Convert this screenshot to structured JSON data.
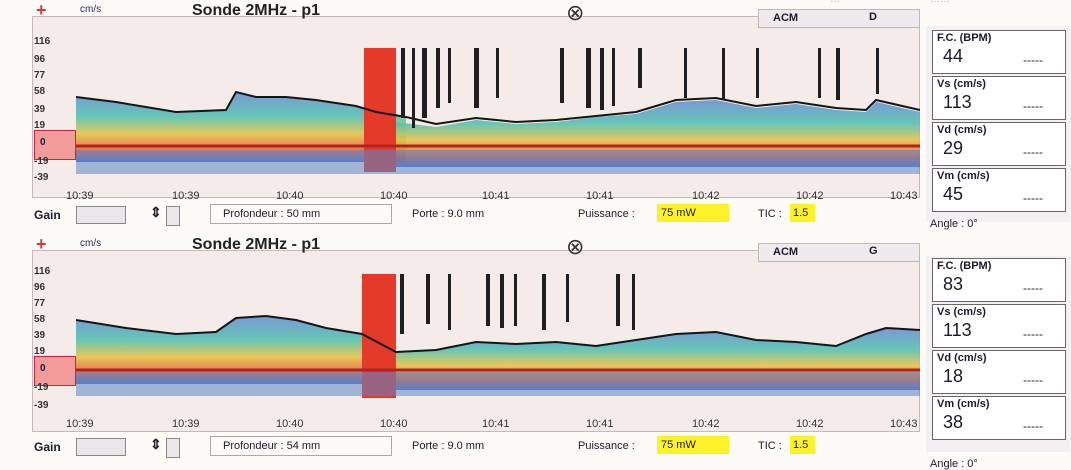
{
  "top_right_fragments": [
    "…",
    "……"
  ],
  "panels": [
    {
      "unit": "cm/s",
      "title": "Sonde 2MHz - p1",
      "acm": "ACM",
      "side": "D",
      "y_labels": [
        "116",
        "96",
        "77",
        "58",
        "39",
        "19",
        "0",
        "-19",
        "-39"
      ],
      "x_ticks": [
        "10:39",
        "10:39",
        "10:40",
        "10:40",
        "10:41",
        "10:41",
        "10:42",
        "10:42",
        "10:43"
      ],
      "gain_label": "Gain",
      "profondeur": "Profondeur :  50 mm",
      "porte": "Porte : 9.0 mm",
      "puissance_label": "Puissance :",
      "puissance_value": "75 mW",
      "tic_label": "TIC :",
      "tic_value": "1.5",
      "metrics": [
        {
          "label": "F.C. (BPM)",
          "value": "44",
          "dash": "-----"
        },
        {
          "label": "Vs (cm/s)",
          "value": "113",
          "dash": "-----"
        },
        {
          "label": "Vd (cm/s)",
          "value": "29",
          "dash": "-----"
        },
        {
          "label": "Vm (cm/s)",
          "value": "45",
          "dash": "-----"
        }
      ],
      "angle": "Angle :  0°"
    },
    {
      "unit": "cm/s",
      "title": "Sonde 2MHz - p1",
      "acm": "ACM",
      "side": "G",
      "y_labels": [
        "116",
        "96",
        "77",
        "58",
        "39",
        "19",
        "0",
        "-19",
        "-39"
      ],
      "x_ticks": [
        "10:39",
        "10:39",
        "10:40",
        "10:40",
        "10:41",
        "10:41",
        "10:42",
        "10:42",
        "10:43"
      ],
      "gain_label": "Gain",
      "profondeur": "Profondeur :  54 mm",
      "porte": "Porte : 9.0 mm",
      "puissance_label": "Puissance :",
      "puissance_value": "75 mW",
      "tic_label": "TIC :",
      "tic_value": "1.5",
      "metrics": [
        {
          "label": "F.C. (BPM)",
          "value": "83",
          "dash": "-----"
        },
        {
          "label": "Vs (cm/s)",
          "value": "113",
          "dash": "-----"
        },
        {
          "label": "Vd (cm/s)",
          "value": "18",
          "dash": "-----"
        },
        {
          "label": "Vm (cm/s)",
          "value": "38",
          "dash": "-----"
        }
      ],
      "angle": "Angle :  0°"
    }
  ]
}
